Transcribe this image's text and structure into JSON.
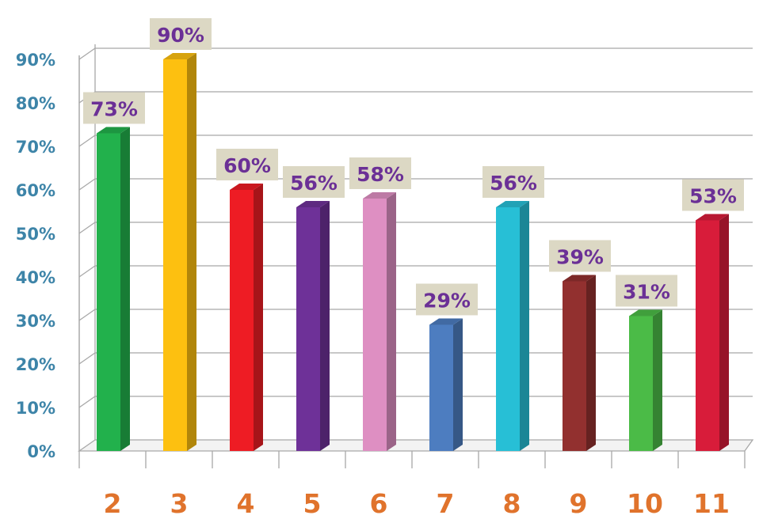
{
  "chart_data": {
    "type": "bar",
    "title": "",
    "categories": [
      "2",
      "3",
      "4",
      "5",
      "6",
      "7",
      "8",
      "9",
      "10",
      "11"
    ],
    "values": [
      73,
      90,
      60,
      56,
      58,
      29,
      56,
      39,
      31,
      53
    ],
    "data_labels": [
      "73%",
      "90%",
      "60%",
      "56%",
      "58%",
      "29%",
      "56%",
      "39%",
      "31%",
      "53%"
    ],
    "y_tick_labels": [
      "0%",
      "10%",
      "20%",
      "30%",
      "40%",
      "50%",
      "60%",
      "70%",
      "80%",
      "90%"
    ],
    "ylim": [
      0,
      90
    ],
    "grid": true,
    "legend": "none",
    "xlabel": "",
    "ylabel": "",
    "colors": {
      "bars": [
        "#22b14c",
        "#fdc010",
        "#ee1c24",
        "#6e3198",
        "#de8fc2",
        "#4d7dc0",
        "#27bfd6",
        "#92302f",
        "#4bbb47",
        "#d81c3a"
      ],
      "label_box": "#dcd8c4",
      "label_text": "#6b3096",
      "y_tick": "#3d84a8",
      "x_tick": "#e0732c",
      "grid": "#a8a8a8"
    }
  }
}
